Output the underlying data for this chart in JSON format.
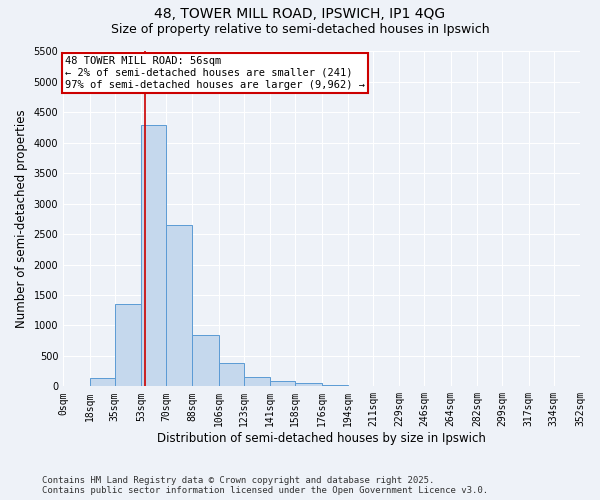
{
  "title_line1": "48, TOWER MILL ROAD, IPSWICH, IP1 4QG",
  "title_line2": "Size of property relative to semi-detached houses in Ipswich",
  "xlabel": "Distribution of semi-detached houses by size in Ipswich",
  "ylabel": "Number of semi-detached properties",
  "annotation_line1": "48 TOWER MILL ROAD: 56sqm",
  "annotation_line2": "← 2% of semi-detached houses are smaller (241)",
  "annotation_line3": "97% of semi-detached houses are larger (9,962) →",
  "footer_line1": "Contains HM Land Registry data © Crown copyright and database right 2025.",
  "footer_line2": "Contains public sector information licensed under the Open Government Licence v3.0.",
  "bar_color": "#c5d8ed",
  "bar_edgecolor": "#5b9bd5",
  "redline_x": 56,
  "bin_edges": [
    0,
    18,
    35,
    53,
    70,
    88,
    106,
    123,
    141,
    158,
    176,
    194,
    211,
    229,
    246,
    264,
    282,
    299,
    317,
    334,
    352
  ],
  "bin_labels": [
    "0sqm",
    "18sqm",
    "35sqm",
    "53sqm",
    "70sqm",
    "88sqm",
    "106sqm",
    "123sqm",
    "141sqm",
    "158sqm",
    "176sqm",
    "194sqm",
    "211sqm",
    "229sqm",
    "246sqm",
    "264sqm",
    "282sqm",
    "299sqm",
    "317sqm",
    "334sqm",
    "352sqm"
  ],
  "bar_values": [
    10,
    130,
    1350,
    4300,
    2650,
    850,
    390,
    150,
    90,
    55,
    20,
    5,
    2,
    1,
    0,
    0,
    0,
    0,
    0,
    0
  ],
  "ylim": [
    0,
    5500
  ],
  "yticks": [
    0,
    500,
    1000,
    1500,
    2000,
    2500,
    3000,
    3500,
    4000,
    4500,
    5000,
    5500
  ],
  "background_color": "#eef2f8",
  "grid_color": "#ffffff",
  "annotation_box_color": "#ffffff",
  "annotation_box_edgecolor": "#cc0000",
  "redline_color": "#cc0000",
  "title_fontsize": 10,
  "subtitle_fontsize": 9,
  "axis_label_fontsize": 8.5,
  "tick_fontsize": 7,
  "annotation_fontsize": 7.5,
  "footer_fontsize": 6.5
}
